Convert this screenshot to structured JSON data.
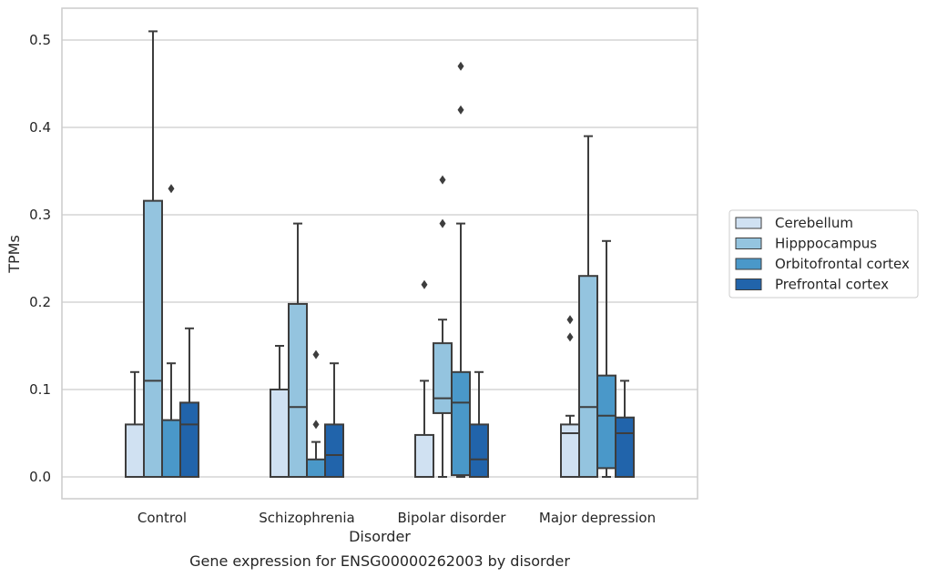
{
  "caption": "Gene expression for ENSG00000262003 by disorder",
  "chart_data": {
    "type": "box",
    "xlabel": "Disorder",
    "ylabel": "TPMs",
    "ylim": [
      -0.025,
      0.537
    ],
    "yticks": [
      0.0,
      0.1,
      0.2,
      0.3,
      0.4,
      0.5
    ],
    "ytick_labels": [
      "0.0",
      "0.1",
      "0.2",
      "0.3",
      "0.4",
      "0.5"
    ],
    "grid": "horizontal",
    "legend_placement": "center-right outside",
    "categories": [
      "Control",
      "Schizophrenia",
      "Bipolar disorder",
      "Major depression"
    ],
    "series": [
      {
        "name": "Cerebellum",
        "color": "#d0e1f2",
        "boxes": [
          {
            "whislo": 0.0,
            "q1": 0.0,
            "med": 0.0,
            "q3": 0.06,
            "whishi": 0.12,
            "fliers": []
          },
          {
            "whislo": 0.0,
            "q1": 0.0,
            "med": 0.0,
            "q3": 0.1,
            "whishi": 0.15,
            "fliers": []
          },
          {
            "whislo": 0.0,
            "q1": 0.0,
            "med": 0.0,
            "q3": 0.048,
            "whishi": 0.11,
            "fliers": [
              0.22
            ]
          },
          {
            "whislo": 0.0,
            "q1": 0.0,
            "med": 0.05,
            "q3": 0.06,
            "whishi": 0.07,
            "fliers": [
              0.16,
              0.18
            ]
          }
        ]
      },
      {
        "name": "Hipppocampus",
        "color": "#94c4df",
        "boxes": [
          {
            "whislo": 0.0,
            "q1": 0.0,
            "med": 0.11,
            "q3": 0.316,
            "whishi": 0.51,
            "fliers": []
          },
          {
            "whislo": 0.0,
            "q1": 0.0,
            "med": 0.08,
            "q3": 0.198,
            "whishi": 0.29,
            "fliers": []
          },
          {
            "whislo": 0.0,
            "q1": 0.073,
            "med": 0.09,
            "q3": 0.153,
            "whishi": 0.18,
            "fliers": [
              0.29,
              0.34
            ]
          },
          {
            "whislo": 0.0,
            "q1": 0.0,
            "med": 0.08,
            "q3": 0.23,
            "whishi": 0.39,
            "fliers": []
          }
        ]
      },
      {
        "name": "Orbitofrontal cortex",
        "color": "#4a98c9",
        "boxes": [
          {
            "whislo": 0.0,
            "q1": 0.0,
            "med": 0.0,
            "q3": 0.065,
            "whishi": 0.13,
            "fliers": [
              0.33
            ]
          },
          {
            "whislo": 0.0,
            "q1": 0.0,
            "med": 0.0,
            "q3": 0.02,
            "whishi": 0.04,
            "fliers": [
              0.06,
              0.14
            ]
          },
          {
            "whislo": 0.0,
            "q1": 0.002,
            "med": 0.085,
            "q3": 0.12,
            "whishi": 0.29,
            "fliers": [
              0.42,
              0.47
            ]
          },
          {
            "whislo": 0.0,
            "q1": 0.01,
            "med": 0.07,
            "q3": 0.116,
            "whishi": 0.27,
            "fliers": []
          }
        ]
      },
      {
        "name": "Prefrontal cortex",
        "color": "#2164ab",
        "boxes": [
          {
            "whislo": 0.0,
            "q1": 0.0,
            "med": 0.06,
            "q3": 0.085,
            "whishi": 0.17,
            "fliers": []
          },
          {
            "whislo": 0.0,
            "q1": 0.0,
            "med": 0.025,
            "q3": 0.06,
            "whishi": 0.13,
            "fliers": []
          },
          {
            "whislo": 0.0,
            "q1": 0.0,
            "med": 0.02,
            "q3": 0.06,
            "whishi": 0.12,
            "fliers": []
          },
          {
            "whislo": 0.0,
            "q1": 0.0,
            "med": 0.05,
            "q3": 0.068,
            "whishi": 0.11,
            "fliers": []
          }
        ]
      }
    ]
  }
}
